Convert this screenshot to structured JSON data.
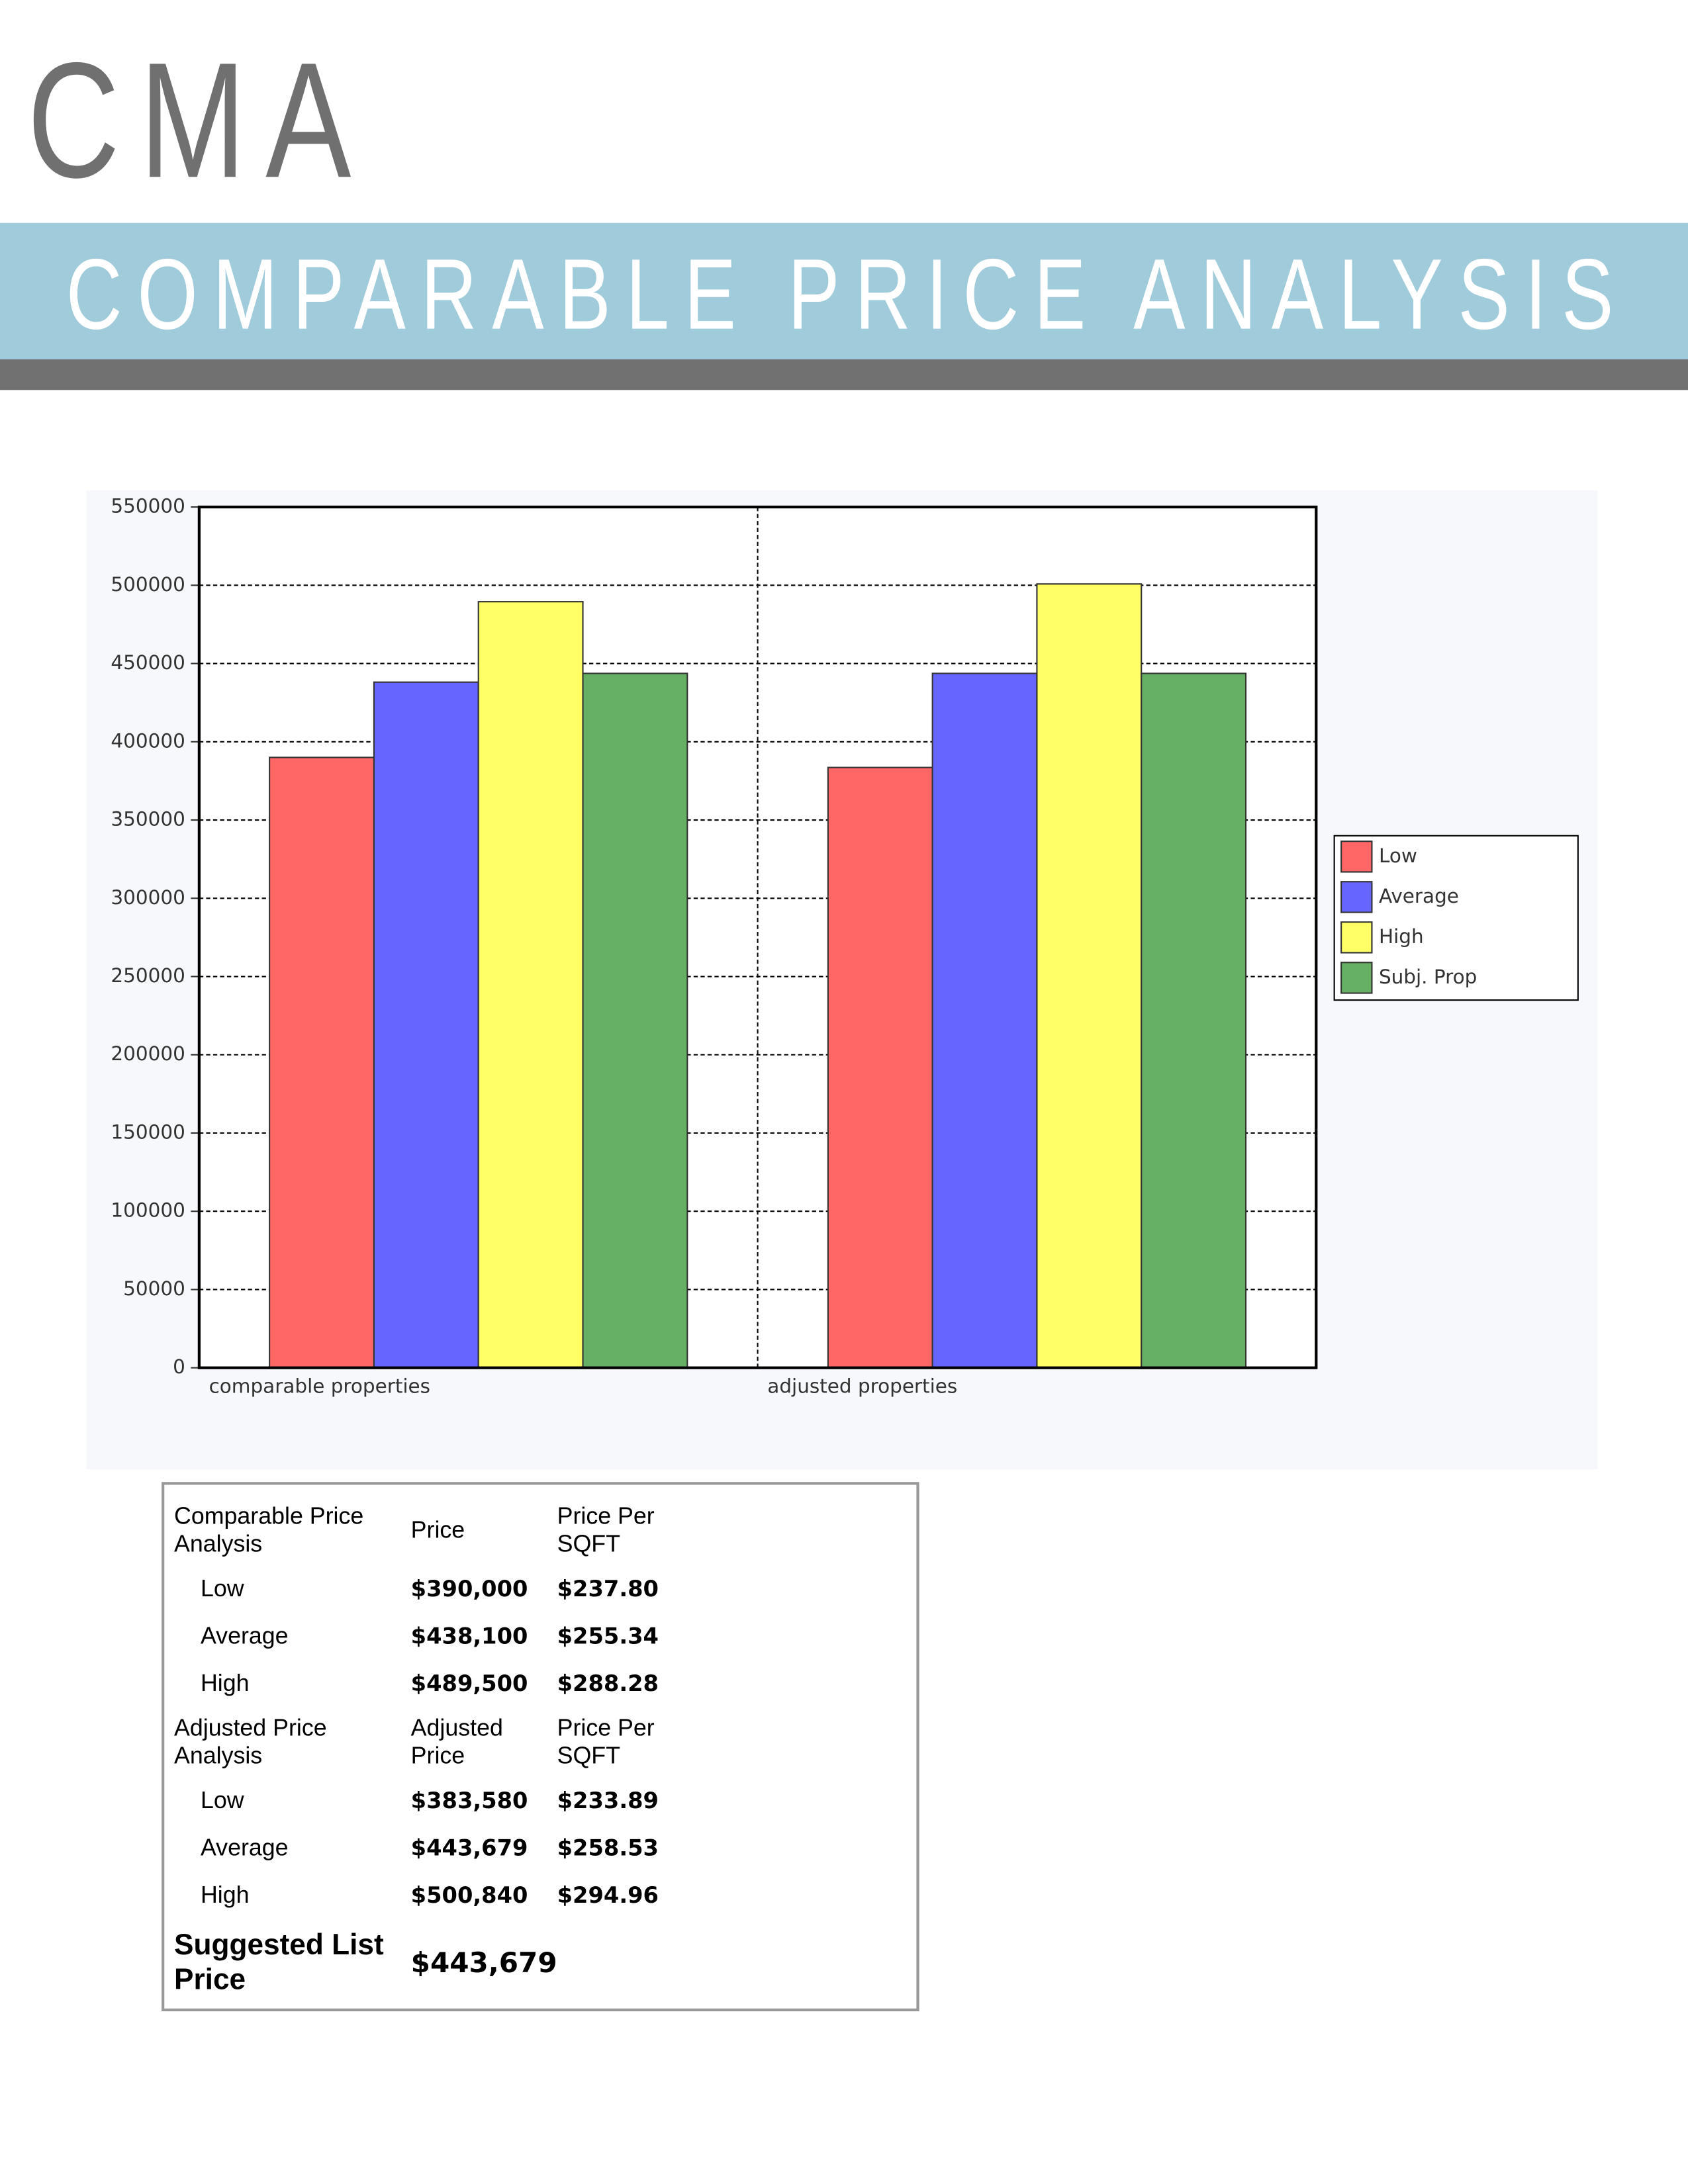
{
  "header": {
    "logo": "CMA",
    "title": "COMPARABLE PRICE ANALYSIS"
  },
  "chart_data": {
    "type": "bar",
    "categories": [
      "comparable properties",
      "adjusted properties"
    ],
    "series": [
      {
        "name": "Low",
        "color": "#ff6666",
        "values": [
          390000,
          383580
        ]
      },
      {
        "name": "Average",
        "color": "#6666ff",
        "values": [
          438100,
          443679
        ]
      },
      {
        "name": "High",
        "color": "#ffff66",
        "values": [
          489500,
          500840
        ]
      },
      {
        "name": "Subj. Prop",
        "color": "#66b066",
        "values": [
          443679,
          443679
        ]
      }
    ],
    "ylim": [
      0,
      550000
    ],
    "yticks": [
      0,
      50000,
      100000,
      150000,
      200000,
      250000,
      300000,
      350000,
      400000,
      450000,
      500000,
      550000
    ],
    "grid": true,
    "legend": "right"
  },
  "table": {
    "groups": [
      {
        "header": [
          "Comparable Price Analysis",
          "Price",
          "Price Per SQFT"
        ],
        "rows": [
          [
            "Low",
            "$390,000",
            "$237.80"
          ],
          [
            "Average",
            "$438,100",
            "$255.34"
          ],
          [
            "High",
            "$489,500",
            "$288.28"
          ]
        ]
      },
      {
        "header": [
          "Adjusted Price Analysis",
          "Adjusted Price",
          "Price Per SQFT"
        ],
        "rows": [
          [
            "Low",
            "$383,580",
            "$233.89"
          ],
          [
            "Average",
            "$443,679",
            "$258.53"
          ],
          [
            "High",
            "$500,840",
            "$294.96"
          ]
        ]
      }
    ],
    "suggested": {
      "label": "Suggested List Price",
      "value": "$443,679"
    }
  }
}
